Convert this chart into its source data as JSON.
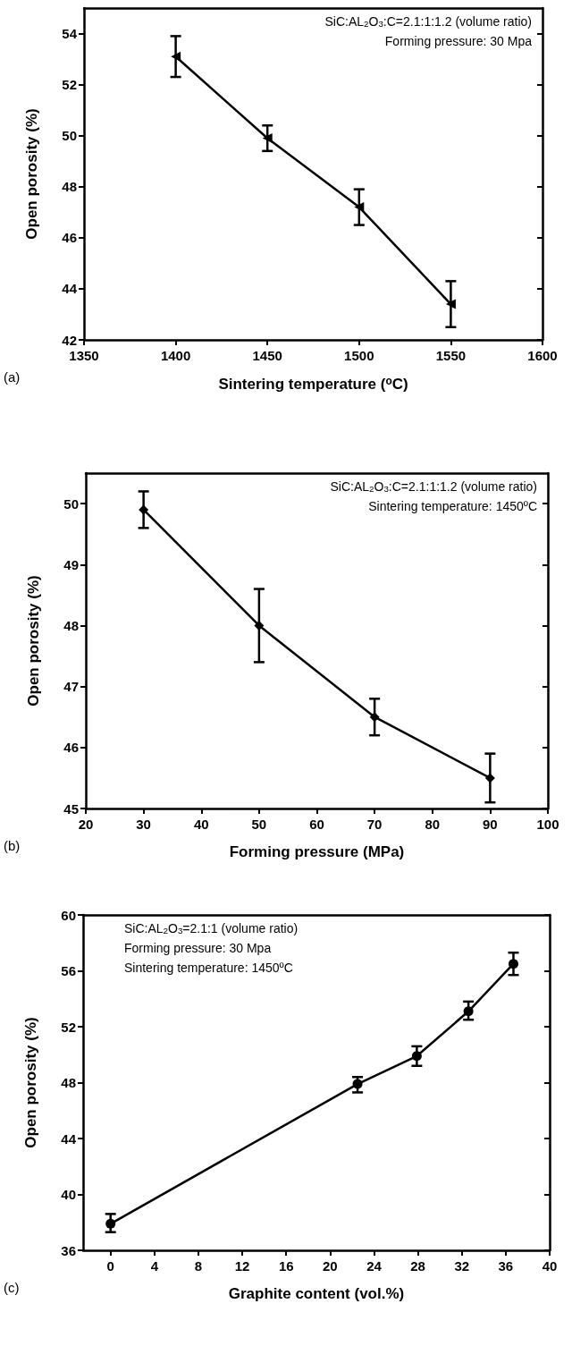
{
  "chart_data": [
    {
      "type": "line",
      "xlabel": "Sintering temperature ($^{o}$C)",
      "ylabel": "Open porosity (%)",
      "annotations": [
        "(a)",
        "SiC:AL$_{2}$O$_{3}$:C=2.1:1:1.2 (volume ratio)",
        "Forming pressure: 30 Mpa"
      ],
      "x": [
        1400,
        1450,
        1500,
        1550
      ],
      "series": [
        {
          "color": "#000000",
          "values": [
            53.1,
            49.9,
            47.2,
            43.4
          ],
          "errors": [
            [
              52.3,
              53.9
            ],
            [
              49.4,
              50.4
            ],
            [
              46.5,
              47.9
            ],
            [
              42.5,
              44.3
            ]
          ]
        }
      ],
      "xlim": [
        1350,
        1600
      ],
      "xticks": [
        1350,
        1400,
        1450,
        1500,
        1550,
        1600
      ],
      "ylim": [
        42,
        55
      ],
      "yticks": [
        42,
        44,
        46,
        48,
        50,
        52,
        54
      ],
      "grid": false,
      "marker": "triangle",
      "line_style": "solid"
    },
    {
      "type": "line",
      "xlabel": "Forming pressure (MPa)",
      "ylabel": "Open porosity (%)",
      "annotations": [
        "(b)",
        "SiC:AL$_{2}$O$_{3}$:C=2.1:1:1.2 (volume ratio)",
        "Sintering temperature: 1450ºC"
      ],
      "x": [
        30,
        50,
        70,
        90
      ],
      "series": [
        {
          "color": "#000000",
          "values": [
            49.9,
            48.0,
            46.5,
            45.5
          ],
          "errors": [
            [
              49.6,
              50.2
            ],
            [
              47.4,
              48.6
            ],
            [
              46.2,
              46.8
            ],
            [
              45.1,
              45.9
            ]
          ]
        }
      ],
      "xlim": [
        20,
        100
      ],
      "xticks": [
        20,
        30,
        40,
        50,
        60,
        70,
        80,
        90,
        100
      ],
      "ylim": [
        45,
        50.5
      ],
      "yticks": [
        45,
        46,
        47,
        48,
        49,
        50
      ],
      "grid": false,
      "marker": "diamond",
      "line_style": "solid"
    },
    {
      "type": "line",
      "xlabel": "Graphite content (vol.%)",
      "ylabel": "Open porosity (%)",
      "annotations": [
        "(c)",
        "SiC:AL$_{2}$O$_{3}$=2.1:1 (volume ratio)",
        "Forming pressure: 30 Mpa",
        "Sintering temperature: 1450ºC"
      ],
      "x": [
        0,
        22.5,
        27.9,
        32.6,
        36.7
      ],
      "series": [
        {
          "color": "#000000",
          "values": [
            37.9,
            47.9,
            49.9,
            53.1,
            56.5
          ],
          "errors": [
            [
              37.3,
              38.6
            ],
            [
              47.3,
              48.4
            ],
            [
              49.2,
              50.6
            ],
            [
              52.5,
              53.8
            ],
            [
              55.7,
              57.3
            ]
          ]
        }
      ],
      "xlim": [
        -2.5,
        40
      ],
      "xticks": [
        0,
        4,
        8,
        12,
        16,
        20,
        24,
        28,
        32,
        36,
        40
      ],
      "ylim": [
        36,
        60
      ],
      "yticks": [
        36,
        40,
        44,
        48,
        52,
        56,
        60
      ],
      "grid": false,
      "marker": "circle",
      "line_style": "solid"
    }
  ]
}
